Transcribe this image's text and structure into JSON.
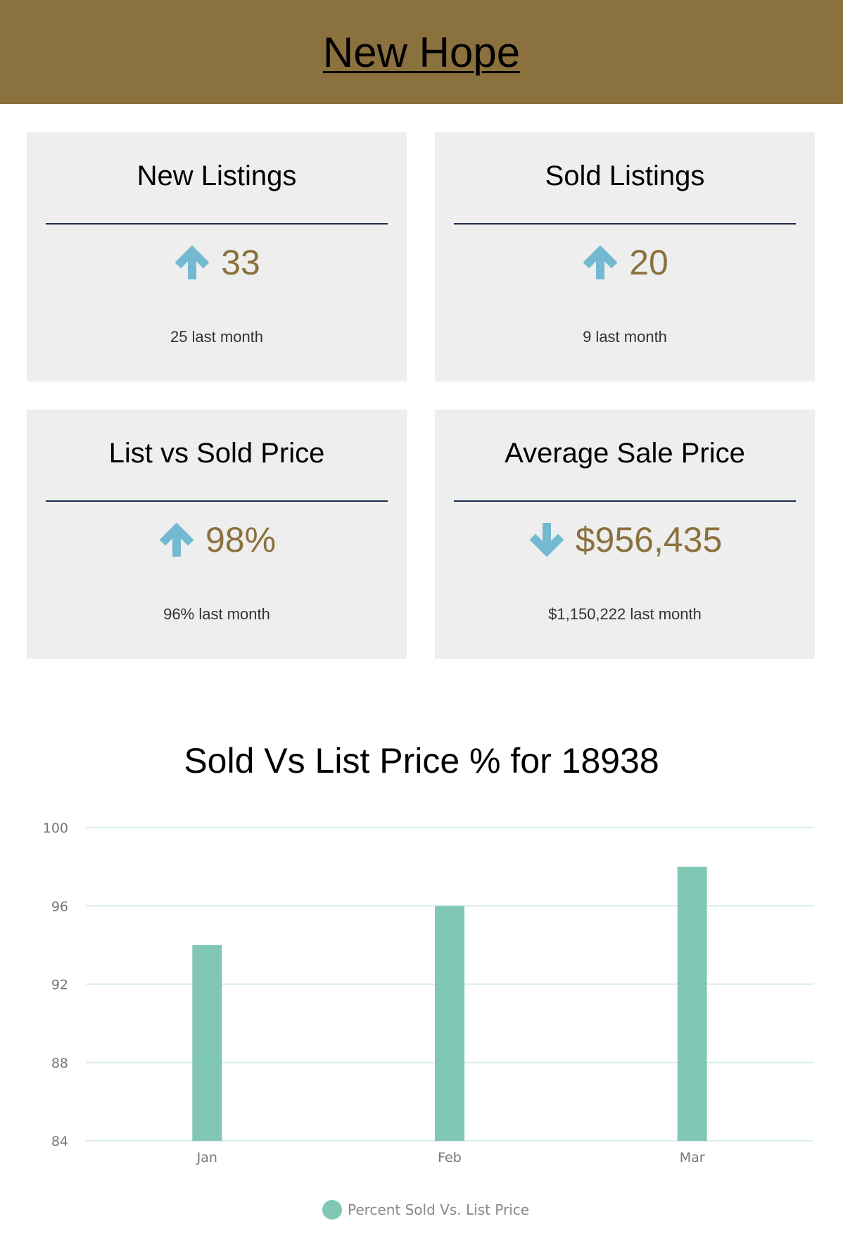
{
  "header": {
    "title": "New Hope"
  },
  "cards": [
    {
      "title": "New Listings",
      "trend": "up",
      "value": "33",
      "sub": "25 last month"
    },
    {
      "title": "Sold Listings",
      "trend": "up",
      "value": "20",
      "sub": "9 last month"
    },
    {
      "title": "List vs Sold Price",
      "trend": "up",
      "value": "98%",
      "sub": "96% last month"
    },
    {
      "title": "Average Sale Price",
      "trend": "down",
      "value": "$956,435",
      "sub": "$1,150,222 last month"
    }
  ],
  "colors": {
    "header_bg": "#8b713d",
    "card_bg": "#eeeeee",
    "value_text": "#8b713d",
    "arrow": "#74b9d2",
    "bar": "#80c8b5",
    "grid": "#d9ecee"
  },
  "chart_data": {
    "type": "bar",
    "title": "Sold Vs List Price % for 18938",
    "categories": [
      "Jan",
      "Feb",
      "Mar"
    ],
    "series": [
      {
        "name": "Percent Sold Vs. List Price",
        "values": [
          94,
          96,
          98
        ]
      }
    ],
    "ylim": [
      84,
      100
    ],
    "yticks": [
      100,
      96,
      92,
      88,
      84
    ],
    "grid": true,
    "legend_position": "bottom-center"
  }
}
